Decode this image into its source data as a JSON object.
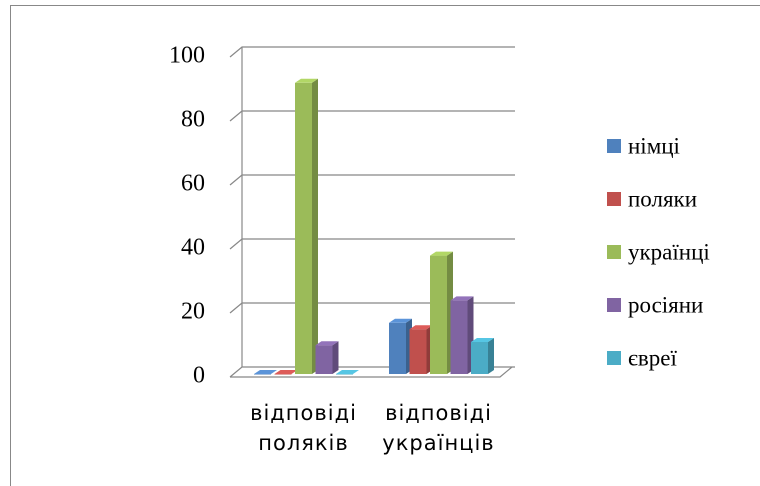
{
  "chart_data": {
    "type": "bar3d",
    "categories": [
      "відповіді поляків",
      "відповіді українців"
    ],
    "series": [
      {
        "name": "німці",
        "color": "#4f81bd",
        "values": [
          0,
          16
        ]
      },
      {
        "name": "поляки",
        "color": "#c0504d",
        "values": [
          0,
          14
        ]
      },
      {
        "name": "українці",
        "color": "#9bbb59",
        "values": [
          91,
          37
        ]
      },
      {
        "name": "росіяни",
        "color": "#8064a2",
        "values": [
          9,
          23
        ]
      },
      {
        "name": "євреї",
        "color": "#4bacc6",
        "values": [
          0,
          10
        ]
      }
    ],
    "ylim": [
      0,
      100
    ],
    "yticks": [
      0,
      20,
      40,
      60,
      80,
      100
    ],
    "grid": true,
    "legend": "right"
  }
}
